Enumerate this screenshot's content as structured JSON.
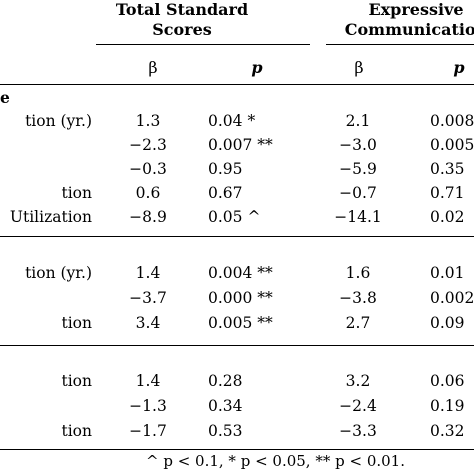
{
  "header": {
    "col1_line1": "Total Standard",
    "col1_line2": "Scores",
    "col2_line1": "Expressive",
    "col2_line2": "Communication",
    "beta": "β",
    "p": "p"
  },
  "sections": [
    {
      "label": "e",
      "rows": [
        {
          "label": "tion (yr.)",
          "b1": "1.3",
          "p1": "0.04 *",
          "b2": "2.1",
          "p2": "0.008"
        },
        {
          "label": "",
          "b1": "−2.3",
          "p1": "0.007 **",
          "b2": "−3.0",
          "p2": "0.005"
        },
        {
          "label": "",
          "b1": "−0.3",
          "p1": "0.95",
          "b2": "−5.9",
          "p2": "0.35"
        },
        {
          "label": "tion",
          "b1": "0.6",
          "p1": "0.67",
          "b2": "−0.7",
          "p2": "0.71"
        },
        {
          "label": "Utilization",
          "b1": "−8.9",
          "p1": "0.05 ^",
          "b2": "−14.1",
          "p2": "0.02"
        }
      ]
    },
    {
      "label": "",
      "rows": [
        {
          "label": "tion (yr.)",
          "b1": "1.4",
          "p1": "0.004 **",
          "b2": "1.6",
          "p2": "0.01"
        },
        {
          "label": "",
          "b1": "−3.7",
          "p1": "0.000 **",
          "b2": "−3.8",
          "p2": "0.002"
        },
        {
          "label": "tion",
          "b1": "3.4",
          "p1": "0.005 **",
          "b2": "2.7",
          "p2": "0.09"
        }
      ]
    },
    {
      "label": "",
      "rows": [
        {
          "label": "tion",
          "b1": "1.4",
          "p1": "0.28",
          "b2": "3.2",
          "p2": "0.06"
        },
        {
          "label": "",
          "b1": "−1.3",
          "p1": "0.34",
          "b2": "−2.4",
          "p2": "0.19"
        },
        {
          "label": "tion",
          "b1": "−1.7",
          "p1": "0.53",
          "b2": "−3.3",
          "p2": "0.32"
        }
      ]
    }
  ],
  "footnote": "^ p < 0.1, * p < 0.05, ** p < 0.01."
}
